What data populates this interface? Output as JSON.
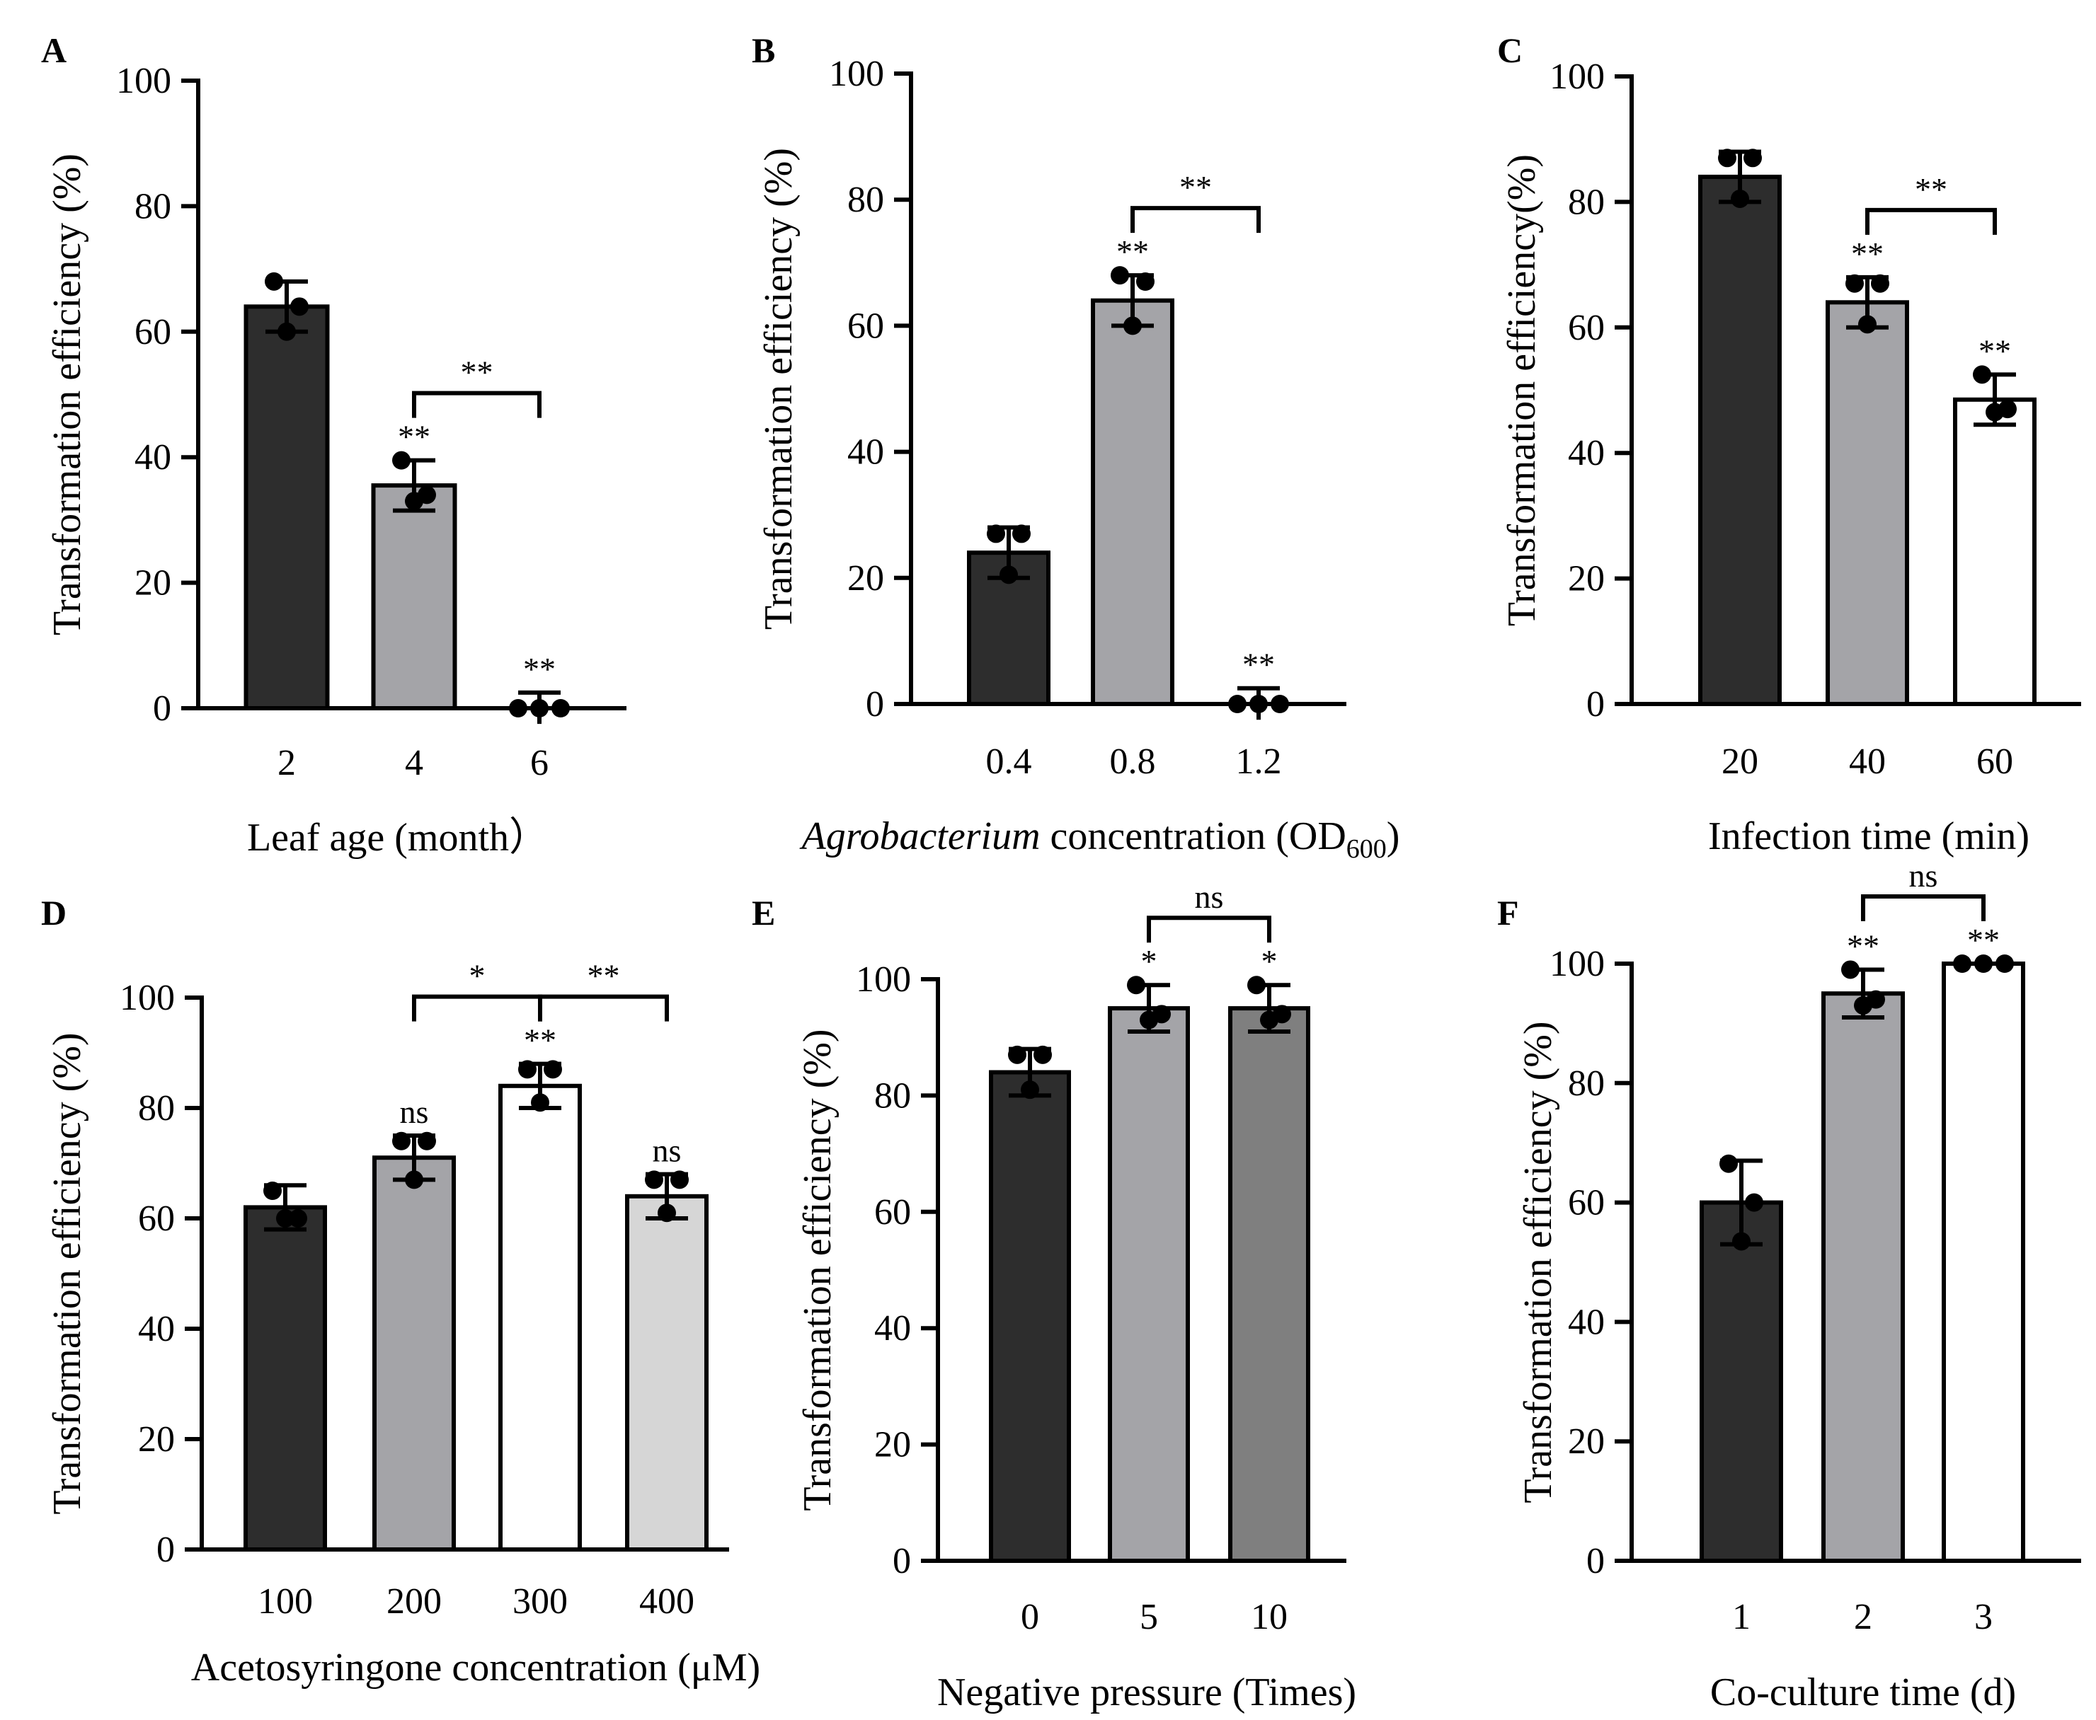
{
  "chart_data": [
    {
      "id": "A",
      "type": "bar",
      "ylabel": "Transformation efficiency (%)",
      "xlabel": "Leaf age (month）",
      "ylim": [
        0,
        100
      ],
      "yticks": [
        0,
        20,
        40,
        60,
        80,
        100
      ],
      "categories": [
        "2",
        "4",
        "6"
      ],
      "values": [
        64,
        35.5,
        0
      ],
      "errors": [
        4,
        4,
        2.5
      ],
      "points": [
        [
          68,
          64,
          60
        ],
        [
          39.5,
          34,
          33
        ],
        [
          0,
          0,
          0
        ]
      ],
      "colors": [
        "#2d2d2d",
        "#a4a4a8",
        "#ffffff"
      ],
      "marks": [
        "",
        "**",
        "**"
      ],
      "brackets": [
        {
          "from": 1,
          "to": 2,
          "label": "**"
        }
      ]
    },
    {
      "id": "B",
      "type": "bar",
      "ylabel": "Transformation efficiency (%)",
      "xlabel_italic": "Agrobacterium",
      "xlabel_rest": " concentration (OD",
      "xlabel_sub": "600",
      "xlabel_end": ")",
      "ylim": [
        0,
        100
      ],
      "yticks": [
        0,
        20,
        40,
        60,
        80,
        100
      ],
      "categories": [
        "0.4",
        "0.8",
        "1.2"
      ],
      "values": [
        24,
        64,
        0
      ],
      "errors": [
        4,
        4,
        2.5
      ],
      "points": [
        [
          27,
          27,
          20.5
        ],
        [
          68,
          67,
          60
        ],
        [
          0,
          0,
          0
        ]
      ],
      "colors": [
        "#2d2d2d",
        "#a4a4a8",
        "#ffffff"
      ],
      "marks": [
        "",
        "**",
        "**"
      ],
      "brackets": [
        {
          "from": 1,
          "to": 2,
          "label": "**"
        }
      ]
    },
    {
      "id": "C",
      "type": "bar",
      "ylabel": "Transformation efficiency(%)",
      "xlabel": "Infection time (min)",
      "ylim": [
        0,
        100
      ],
      "yticks": [
        0,
        20,
        40,
        60,
        80,
        100
      ],
      "categories": [
        "20",
        "40",
        "60"
      ],
      "values": [
        84,
        64,
        48.5
      ],
      "errors": [
        4,
        4,
        4
      ],
      "points": [
        [
          87,
          87,
          80.5
        ],
        [
          67,
          67,
          60.5
        ],
        [
          52.5,
          47,
          46.5
        ]
      ],
      "colors": [
        "#2d2d2d",
        "#a4a4a8",
        "#ffffff"
      ],
      "marks": [
        "",
        "**",
        "**"
      ],
      "brackets": [
        {
          "from": 1,
          "to": 2,
          "label": "**"
        }
      ]
    },
    {
      "id": "D",
      "type": "bar",
      "ylabel": "Transformation efficiency (%)",
      "xlabel": "Acetosyringone concentration (μM)",
      "ylim": [
        0,
        100
      ],
      "yticks": [
        0,
        20,
        40,
        60,
        80,
        100
      ],
      "categories": [
        "100",
        "200",
        "300",
        "400"
      ],
      "values": [
        62,
        71,
        84,
        64
      ],
      "errors": [
        4,
        4,
        4,
        4
      ],
      "points": [
        [
          65,
          60,
          60
        ],
        [
          74,
          74,
          67
        ],
        [
          87,
          87,
          81
        ],
        [
          67,
          67,
          61
        ]
      ],
      "colors": [
        "#2d2d2d",
        "#a4a4a8",
        "#ffffff",
        "#d6d6d6"
      ],
      "marks": [
        "",
        "ns",
        "**",
        "ns"
      ],
      "brackets": [
        {
          "from": 1,
          "to": 2,
          "label": "*"
        },
        {
          "from": 2,
          "to": 3,
          "label": "**"
        }
      ]
    },
    {
      "id": "E",
      "type": "bar",
      "ylabel": "Transformation efficiency (%)",
      "xlabel": "Negative pressure (Times)",
      "ylim": [
        0,
        100
      ],
      "yticks": [
        0,
        20,
        40,
        60,
        80,
        100
      ],
      "categories": [
        "0",
        "5",
        "10"
      ],
      "values": [
        84,
        95,
        95
      ],
      "errors": [
        4,
        4,
        4
      ],
      "points": [
        [
          87,
          87,
          81
        ],
        [
          99,
          94,
          93
        ],
        [
          99,
          94,
          93
        ]
      ],
      "colors": [
        "#2d2d2d",
        "#a4a4a8",
        "#7f7f7f"
      ],
      "marks": [
        "",
        "*",
        "*"
      ],
      "brackets": [
        {
          "from": 1,
          "to": 2,
          "label": "ns"
        }
      ]
    },
    {
      "id": "F",
      "type": "bar",
      "ylabel": "Transformation efficiency (%)",
      "xlabel": "Co-culture time (d)",
      "ylim": [
        0,
        100
      ],
      "yticks": [
        0,
        20,
        40,
        60,
        80,
        100
      ],
      "categories": [
        "1",
        "2",
        "3"
      ],
      "values": [
        60,
        95,
        100
      ],
      "errors": [
        7,
        4,
        0
      ],
      "points": [
        [
          66.5,
          60,
          53.5
        ],
        [
          99,
          94,
          93
        ],
        [
          100,
          100,
          100
        ]
      ],
      "colors": [
        "#2d2d2d",
        "#a4a4a8",
        "#ffffff"
      ],
      "marks": [
        "",
        "**",
        "**"
      ],
      "brackets": [
        {
          "from": 1,
          "to": 2,
          "label": "ns"
        }
      ]
    }
  ]
}
